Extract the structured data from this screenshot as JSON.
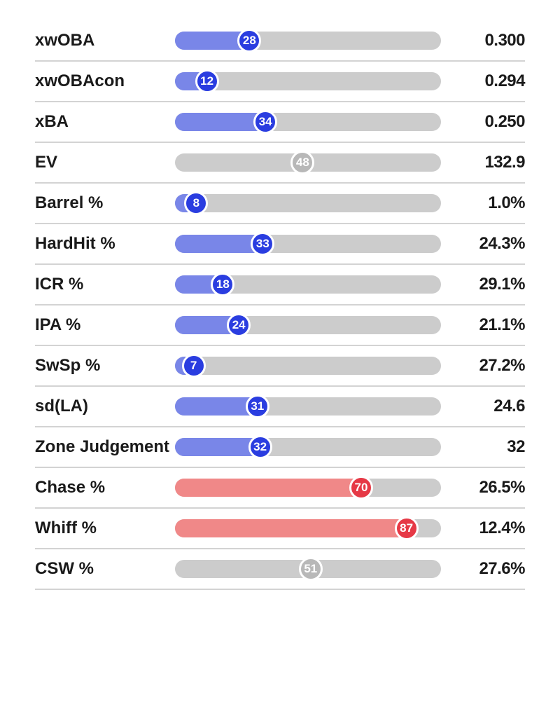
{
  "colors": {
    "track": "#cccccc",
    "blue_fill": "#7986e8",
    "blue_marker": "#2a3de0",
    "red_fill": "#f08888",
    "red_marker": "#e63946",
    "gray_marker": "#b8b8b8",
    "text": "#1a1a1a",
    "divider": "#d3d3d3"
  },
  "bar": {
    "track_height": 26,
    "marker_size": 34,
    "border_radius": 13
  },
  "stats": [
    {
      "label": "xwOBA",
      "percentile": 28,
      "value": "0.300",
      "scheme": "blue"
    },
    {
      "label": "xwOBAcon",
      "percentile": 12,
      "value": "0.294",
      "scheme": "blue"
    },
    {
      "label": "xBA",
      "percentile": 34,
      "value": "0.250",
      "scheme": "blue"
    },
    {
      "label": "EV",
      "percentile": 48,
      "value": "132.9",
      "scheme": "gray"
    },
    {
      "label": "Barrel %",
      "percentile": 8,
      "value": "1.0%",
      "scheme": "blue"
    },
    {
      "label": "HardHit %",
      "percentile": 33,
      "value": "24.3%",
      "scheme": "blue"
    },
    {
      "label": "ICR %",
      "percentile": 18,
      "value": "29.1%",
      "scheme": "blue"
    },
    {
      "label": "IPA %",
      "percentile": 24,
      "value": "21.1%",
      "scheme": "blue"
    },
    {
      "label": "SwSp %",
      "percentile": 7,
      "value": "27.2%",
      "scheme": "blue"
    },
    {
      "label": "sd(LA)",
      "percentile": 31,
      "value": "24.6",
      "scheme": "blue"
    },
    {
      "label": "Zone Judgement",
      "percentile": 32,
      "value": "32",
      "scheme": "blue"
    },
    {
      "label": "Chase %",
      "percentile": 70,
      "value": "26.5%",
      "scheme": "red"
    },
    {
      "label": "Whiff %",
      "percentile": 87,
      "value": "12.4%",
      "scheme": "red"
    },
    {
      "label": "CSW %",
      "percentile": 51,
      "value": "27.6%",
      "scheme": "gray"
    }
  ]
}
